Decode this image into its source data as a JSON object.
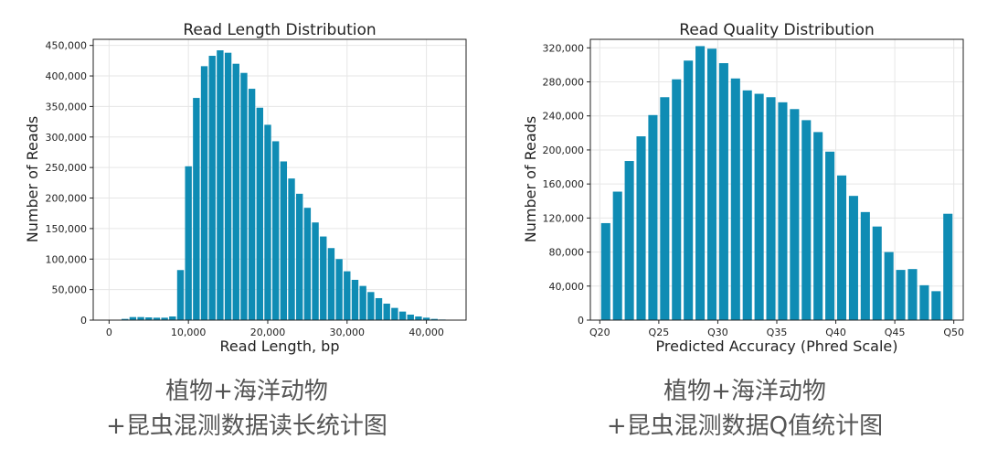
{
  "chart_data": [
    {
      "type": "bar",
      "title": "Read Length Distribution",
      "xlabel": "Read Length, bp",
      "ylabel": "Number of Reads",
      "xlim": [
        -2000,
        45000
      ],
      "ylim": [
        0,
        460000
      ],
      "xticks": [
        {
          "value": 0,
          "label": "0"
        },
        {
          "value": 10000,
          "label": "10,000"
        },
        {
          "value": 20000,
          "label": "20,000"
        },
        {
          "value": 30000,
          "label": "30,000"
        },
        {
          "value": 40000,
          "label": "40,000"
        }
      ],
      "yticks": [
        {
          "value": 0,
          "label": "0"
        },
        {
          "value": 50000,
          "label": "50,000"
        },
        {
          "value": 100000,
          "label": "100,000"
        },
        {
          "value": 150000,
          "label": "150,000"
        },
        {
          "value": 200000,
          "label": "200,000"
        },
        {
          "value": 250000,
          "label": "250,000"
        },
        {
          "value": 300000,
          "label": "300,000"
        },
        {
          "value": 350000,
          "label": "350,000"
        },
        {
          "value": 400000,
          "label": "400,000"
        },
        {
          "value": 450000,
          "label": "450,000"
        }
      ],
      "bin_width": 1000,
      "bar_color": "#0f8cb4",
      "grid": true,
      "x": [
        1000,
        2000,
        3000,
        4000,
        5000,
        6000,
        7000,
        8000,
        9000,
        10000,
        11000,
        12000,
        13000,
        14000,
        15000,
        16000,
        17000,
        18000,
        19000,
        20000,
        21000,
        22000,
        23000,
        24000,
        25000,
        26000,
        27000,
        28000,
        29000,
        30000,
        31000,
        32000,
        33000,
        34000,
        35000,
        36000,
        37000,
        38000,
        39000,
        40000,
        41000,
        42000
      ],
      "values": [
        500,
        2000,
        5000,
        5000,
        4500,
        4000,
        4000,
        6000,
        82000,
        252000,
        364000,
        416000,
        433000,
        442000,
        438000,
        420000,
        405000,
        379000,
        348000,
        320000,
        293000,
        260000,
        232000,
        207000,
        184000,
        160000,
        137000,
        118000,
        100000,
        80000,
        66000,
        56000,
        46000,
        36000,
        27000,
        20000,
        14000,
        9000,
        6000,
        4000,
        2000,
        1000
      ]
    },
    {
      "type": "bar",
      "title": "Read Quality Distribution",
      "xlabel": "Predicted Accuracy (Phred Scale)",
      "ylabel": "Number of Reads",
      "xlim": [
        19.2,
        50.8
      ],
      "ylim": [
        0,
        330000
      ],
      "xticks": [
        {
          "value": 20,
          "label": "Q20"
        },
        {
          "value": 25,
          "label": "Q25"
        },
        {
          "value": 30,
          "label": "Q30"
        },
        {
          "value": 35,
          "label": "Q35"
        },
        {
          "value": 40,
          "label": "Q40"
        },
        {
          "value": 45,
          "label": "Q45"
        },
        {
          "value": 50,
          "label": "Q50"
        }
      ],
      "yticks": [
        {
          "value": 0,
          "label": "0"
        },
        {
          "value": 40000,
          "label": "40,000"
        },
        {
          "value": 80000,
          "label": "80,000"
        },
        {
          "value": 120000,
          "label": "120,000"
        },
        {
          "value": 160000,
          "label": "160,000"
        },
        {
          "value": 200000,
          "label": "200,000"
        },
        {
          "value": 240000,
          "label": "240,000"
        },
        {
          "value": 280000,
          "label": "280,000"
        },
        {
          "value": 320000,
          "label": "320,000"
        }
      ],
      "bin_width": 1,
      "bar_color": "#0f8cb4",
      "grid": true,
      "x": [
        20.5,
        21.5,
        22.5,
        23.5,
        24.5,
        25.5,
        26.5,
        27.5,
        28.5,
        29.5,
        30.5,
        31.5,
        32.5,
        33.5,
        34.5,
        35.5,
        36.5,
        37.5,
        38.5,
        39.5,
        40.5,
        41.5,
        42.5,
        43.5,
        44.5,
        45.5,
        46.5,
        47.5,
        48.5,
        49.5
      ],
      "values": [
        114000,
        151000,
        187000,
        216000,
        241000,
        262000,
        283000,
        305000,
        322000,
        319000,
        302000,
        284000,
        270000,
        266000,
        262000,
        256000,
        248000,
        235000,
        221000,
        198000,
        170000,
        146000,
        127000,
        110000,
        80000,
        59000,
        60000,
        41000,
        34000,
        125000
      ]
    }
  ],
  "captions": {
    "left_line1": "植物+海洋动物",
    "left_line2": "+昆虫混测数据读长统计图",
    "right_line1": "植物+海洋动物",
    "right_line2": "+昆虫混测数据Q值统计图"
  }
}
